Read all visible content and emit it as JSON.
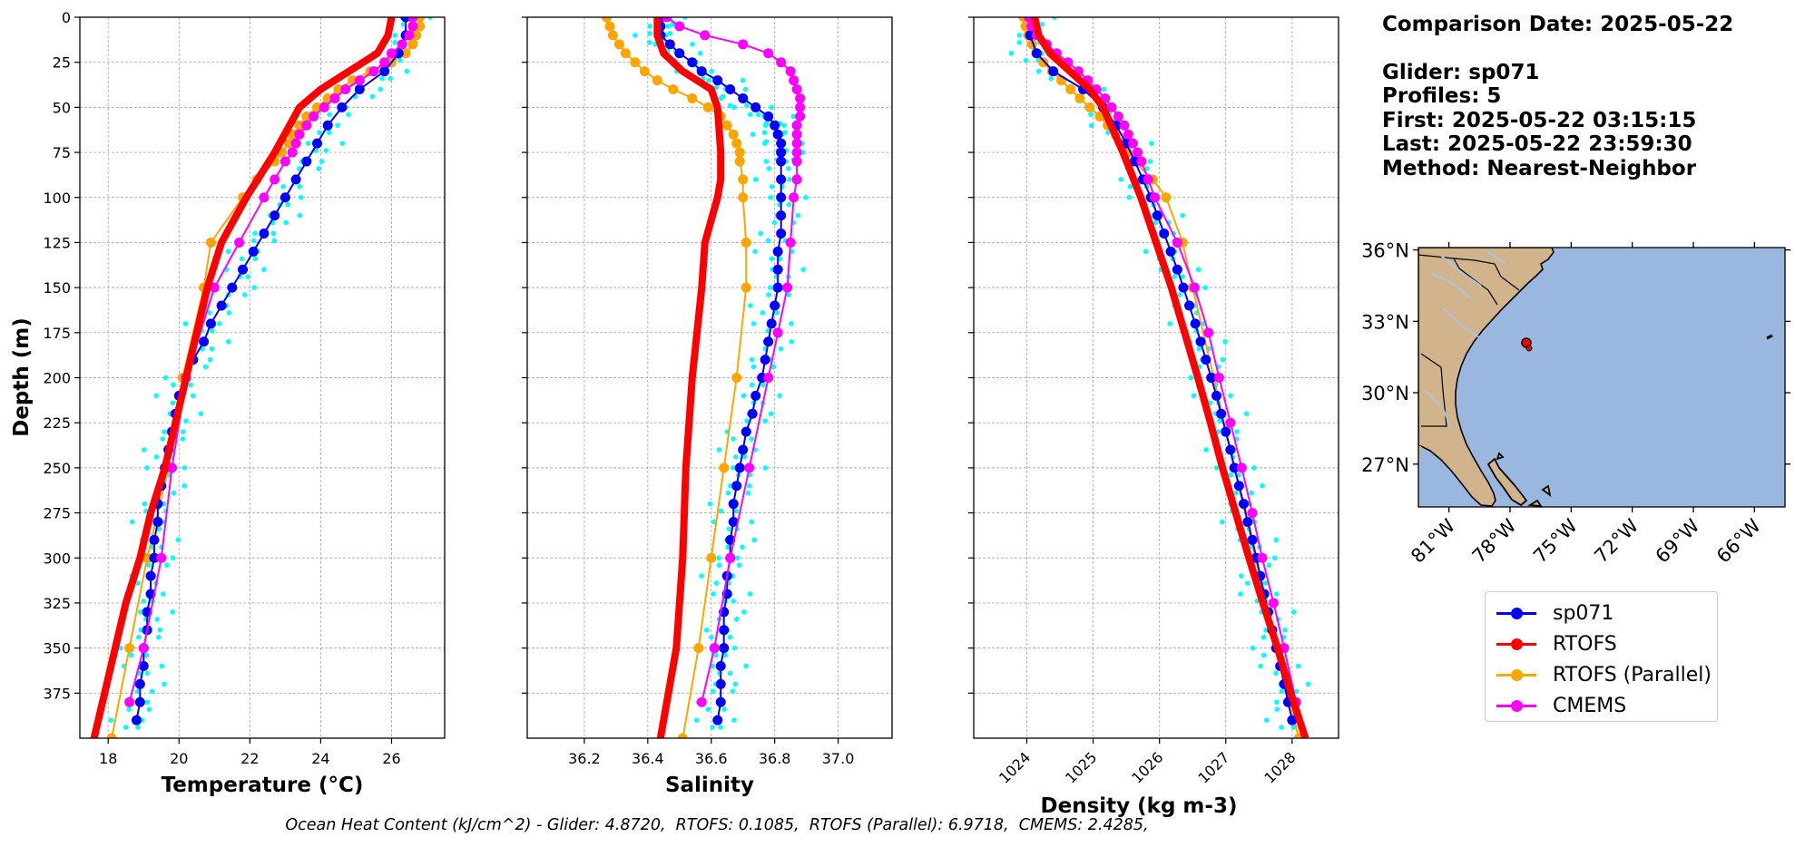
{
  "info": {
    "comparison": "Comparison Date: 2025-05-22",
    "glider": "Glider: sp071",
    "profiles": "Profiles: 5",
    "first": "First: 2025-05-22 03:15:15",
    "last": "Last: 2025-05-22 23:59:30",
    "method": "Method: Nearest-Neighbor"
  },
  "footer": "Ocean Heat Content (kJ/cm^2) - Glider: 4.8720,  RTOFS: 0.1085,  RTOFS (Parallel): 6.9718,  CMEMS: 2.4285,",
  "colors": {
    "sp071": "#0000ff",
    "rtofs": "#ff0000",
    "parallel": "#ffa500",
    "cmems": "#ff00ff",
    "raw": "#00ffff",
    "land": "#d2b48c",
    "ocean": "#9ab7e0"
  },
  "legend": [
    {
      "label": "sp071",
      "color": "#0000ff"
    },
    {
      "label": "RTOFS",
      "color": "#ff0000"
    },
    {
      "label": "RTOFS (Parallel)",
      "color": "#ffa500"
    },
    {
      "label": "CMEMS",
      "color": "#ff00ff"
    }
  ],
  "chart_data": [
    {
      "type": "line",
      "xlabel": "Temperature (°C)",
      "ylabel": "Depth (m)",
      "xlim": [
        17.2,
        27.5
      ],
      "ylim": [
        400,
        0
      ],
      "xticks": [
        18,
        20,
        22,
        24,
        26
      ],
      "yticks": [
        0,
        25,
        50,
        75,
        100,
        125,
        150,
        175,
        200,
        225,
        250,
        275,
        300,
        325,
        350,
        375
      ],
      "grid": true,
      "series": [
        {
          "name": "sp071",
          "depth": [
            0,
            10,
            20,
            30,
            40,
            50,
            60,
            70,
            80,
            90,
            100,
            110,
            120,
            130,
            140,
            150,
            160,
            170,
            180,
            190,
            200,
            210,
            220,
            230,
            240,
            250,
            260,
            270,
            280,
            290,
            300,
            310,
            320,
            330,
            340,
            350,
            360,
            370,
            380,
            390
          ],
          "values": [
            26.4,
            26.4,
            26.2,
            25.8,
            25.1,
            24.6,
            24.2,
            23.9,
            23.6,
            23.3,
            23.0,
            22.7,
            22.4,
            22.1,
            21.8,
            21.5,
            21.2,
            20.9,
            20.7,
            20.4,
            20.2,
            20.0,
            19.9,
            19.8,
            19.7,
            19.6,
            19.5,
            19.4,
            19.4,
            19.3,
            19.3,
            19.2,
            19.2,
            19.1,
            19.1,
            19.0,
            19.0,
            18.9,
            18.9,
            18.8
          ]
        },
        {
          "name": "RTOFS",
          "depth": [
            0,
            10,
            20,
            30,
            40,
            50,
            75,
            100,
            125,
            150,
            175,
            200,
            225,
            250,
            275,
            300,
            325,
            350,
            375,
            400
          ],
          "values": [
            26.0,
            25.9,
            25.6,
            24.8,
            24.0,
            23.4,
            22.7,
            21.9,
            21.2,
            20.8,
            20.5,
            20.2,
            19.9,
            19.6,
            19.2,
            18.9,
            18.5,
            18.2,
            17.9,
            17.6
          ]
        },
        {
          "name": "RTOFS (Parallel)",
          "depth": [
            0,
            5,
            10,
            15,
            20,
            25,
            30,
            35,
            40,
            45,
            50,
            55,
            60,
            65,
            70,
            75,
            80,
            90,
            100,
            125,
            150,
            200,
            250,
            300,
            350,
            400
          ],
          "values": [
            26.8,
            26.8,
            26.7,
            26.6,
            26.4,
            26.0,
            25.4,
            24.9,
            24.5,
            24.2,
            23.9,
            23.6,
            23.4,
            23.2,
            23.1,
            22.9,
            22.7,
            22.2,
            21.8,
            20.9,
            20.7,
            20.1,
            19.7,
            19.1,
            18.6,
            18.1
          ]
        },
        {
          "name": "CMEMS",
          "depth": [
            0,
            5,
            10,
            15,
            20,
            25,
            30,
            35,
            40,
            45,
            50,
            55,
            60,
            65,
            70,
            75,
            80,
            90,
            100,
            125,
            150,
            200,
            250,
            300,
            350,
            380
          ],
          "values": [
            26.6,
            26.6,
            26.5,
            26.3,
            26.0,
            25.8,
            25.5,
            25.1,
            24.7,
            24.4,
            24.1,
            23.8,
            23.6,
            23.4,
            23.3,
            23.2,
            23.0,
            22.7,
            22.4,
            21.7,
            21.0,
            20.2,
            19.8,
            19.5,
            19.0,
            18.6
          ]
        }
      ]
    },
    {
      "type": "line",
      "xlabel": "Salinity",
      "ylabel": "",
      "xlim": [
        36.02,
        37.17
      ],
      "ylim": [
        400,
        0
      ],
      "xticks": [
        36.2,
        36.4,
        36.6,
        36.8,
        37.0
      ],
      "grid": true,
      "series": [
        {
          "name": "sp071",
          "depth": [
            0,
            5,
            10,
            15,
            20,
            25,
            30,
            35,
            40,
            45,
            50,
            55,
            60,
            65,
            70,
            75,
            80,
            90,
            100,
            110,
            120,
            130,
            140,
            150,
            160,
            170,
            180,
            190,
            200,
            210,
            220,
            230,
            240,
            250,
            260,
            270,
            280,
            290,
            300,
            310,
            320,
            330,
            340,
            350,
            360,
            370,
            380,
            390
          ],
          "values": [
            36.44,
            36.44,
            36.44,
            36.47,
            36.5,
            36.54,
            36.57,
            36.62,
            36.66,
            36.7,
            36.74,
            36.78,
            36.8,
            36.81,
            36.82,
            36.82,
            36.82,
            36.82,
            36.82,
            36.82,
            36.82,
            36.81,
            36.81,
            36.81,
            36.8,
            36.79,
            36.78,
            36.77,
            36.76,
            36.74,
            36.73,
            36.71,
            36.7,
            36.69,
            36.68,
            36.67,
            36.67,
            36.66,
            36.66,
            36.65,
            36.65,
            36.64,
            36.64,
            36.64,
            36.63,
            36.63,
            36.63,
            36.62
          ]
        },
        {
          "name": "RTOFS",
          "depth": [
            0,
            10,
            20,
            30,
            40,
            50,
            75,
            90,
            100,
            125,
            150,
            200,
            250,
            300,
            350,
            400
          ],
          "values": [
            36.43,
            36.43,
            36.45,
            36.51,
            36.6,
            36.62,
            36.63,
            36.63,
            36.62,
            36.58,
            36.57,
            36.54,
            36.52,
            36.51,
            36.49,
            36.44
          ]
        },
        {
          "name": "RTOFS (Parallel)",
          "depth": [
            0,
            5,
            10,
            15,
            20,
            25,
            30,
            35,
            40,
            45,
            50,
            55,
            60,
            65,
            70,
            75,
            80,
            90,
            100,
            125,
            150,
            200,
            250,
            300,
            350,
            400
          ],
          "values": [
            36.27,
            36.28,
            36.29,
            36.31,
            36.33,
            36.36,
            36.39,
            36.43,
            36.48,
            36.54,
            36.59,
            36.63,
            36.65,
            36.67,
            36.68,
            36.69,
            36.69,
            36.7,
            36.7,
            36.71,
            36.71,
            36.68,
            36.64,
            36.6,
            36.56,
            36.51
          ]
        },
        {
          "name": "CMEMS",
          "depth": [
            0,
            5,
            10,
            15,
            20,
            25,
            30,
            35,
            40,
            45,
            50,
            55,
            60,
            65,
            70,
            75,
            80,
            90,
            100,
            125,
            150,
            175,
            200,
            250,
            300,
            350,
            380
          ],
          "values": [
            36.46,
            36.5,
            36.58,
            36.7,
            36.78,
            36.82,
            36.85,
            36.86,
            36.87,
            36.88,
            36.88,
            36.88,
            36.87,
            36.87,
            36.87,
            36.87,
            36.87,
            36.87,
            36.86,
            36.85,
            36.84,
            36.81,
            36.78,
            36.72,
            36.66,
            36.61,
            36.57
          ]
        }
      ]
    },
    {
      "type": "line",
      "xlabel": "Density (kg m-3)",
      "ylabel": "",
      "xlim": [
        1023.2,
        1028.7
      ],
      "ylim": [
        400,
        0
      ],
      "xticks": [
        1024,
        1025,
        1026,
        1027,
        1028
      ],
      "grid": true,
      "series": [
        {
          "name": "sp071",
          "depth": [
            0,
            10,
            20,
            30,
            40,
            50,
            60,
            70,
            80,
            90,
            100,
            110,
            120,
            130,
            140,
            150,
            160,
            170,
            180,
            190,
            200,
            210,
            220,
            230,
            240,
            250,
            260,
            270,
            280,
            290,
            300,
            310,
            320,
            330,
            340,
            350,
            360,
            370,
            380,
            390
          ],
          "values": [
            1024.05,
            1024.05,
            1024.15,
            1024.4,
            1024.85,
            1025.15,
            1025.35,
            1025.5,
            1025.63,
            1025.75,
            1025.87,
            1025.97,
            1026.07,
            1026.17,
            1026.27,
            1026.36,
            1026.45,
            1026.54,
            1026.62,
            1026.7,
            1026.78,
            1026.86,
            1026.93,
            1027.0,
            1027.07,
            1027.13,
            1027.2,
            1027.27,
            1027.33,
            1027.4,
            1027.46,
            1027.52,
            1027.58,
            1027.64,
            1027.7,
            1027.76,
            1027.82,
            1027.88,
            1027.94,
            1028.0
          ]
        },
        {
          "name": "RTOFS",
          "depth": [
            0,
            10,
            20,
            30,
            40,
            50,
            75,
            100,
            125,
            150,
            175,
            200,
            225,
            250,
            275,
            300,
            325,
            350,
            375,
            400
          ],
          "values": [
            1024.12,
            1024.18,
            1024.35,
            1024.65,
            1024.95,
            1025.15,
            1025.45,
            1025.72,
            1025.95,
            1026.18,
            1026.38,
            1026.58,
            1026.77,
            1026.95,
            1027.15,
            1027.35,
            1027.56,
            1027.78,
            1027.98,
            1028.2
          ]
        },
        {
          "name": "RTOFS (Parallel)",
          "depth": [
            0,
            5,
            10,
            15,
            20,
            25,
            30,
            35,
            40,
            45,
            50,
            55,
            60,
            65,
            70,
            75,
            80,
            90,
            100,
            125,
            150,
            200,
            250,
            300,
            350,
            400
          ],
          "values": [
            1023.95,
            1023.98,
            1024.02,
            1024.08,
            1024.14,
            1024.25,
            1024.38,
            1024.52,
            1024.66,
            1024.8,
            1024.95,
            1025.1,
            1025.22,
            1025.34,
            1025.43,
            1025.52,
            1025.62,
            1025.9,
            1026.1,
            1026.35,
            1026.5,
            1026.82,
            1027.13,
            1027.45,
            1027.78,
            1028.1
          ]
        },
        {
          "name": "CMEMS",
          "depth": [
            0,
            5,
            10,
            15,
            20,
            25,
            30,
            35,
            40,
            45,
            50,
            55,
            60,
            65,
            70,
            75,
            80,
            90,
            100,
            125,
            150,
            175,
            200,
            225,
            250,
            275,
            300,
            325,
            350,
            380
          ],
          "values": [
            1024.03,
            1024.07,
            1024.15,
            1024.3,
            1024.45,
            1024.62,
            1024.78,
            1024.92,
            1025.05,
            1025.18,
            1025.28,
            1025.38,
            1025.47,
            1025.53,
            1025.6,
            1025.67,
            1025.73,
            1025.83,
            1025.93,
            1026.27,
            1026.53,
            1026.74,
            1026.9,
            1027.07,
            1027.24,
            1027.4,
            1027.55,
            1027.72,
            1027.88,
            1028.06
          ]
        }
      ]
    },
    {
      "type": "map",
      "lon_ticks": [
        "81°W",
        "78°W",
        "75°W",
        "72°W",
        "69°W",
        "66°W"
      ],
      "lat_ticks": [
        "36°N",
        "33°N",
        "30°N",
        "27°N"
      ],
      "lon_range": [
        -82.5,
        -64.5
      ],
      "lat_range": [
        25.2,
        36.1
      ],
      "marker": {
        "lon": -77.2,
        "lat": 32.1
      }
    }
  ]
}
